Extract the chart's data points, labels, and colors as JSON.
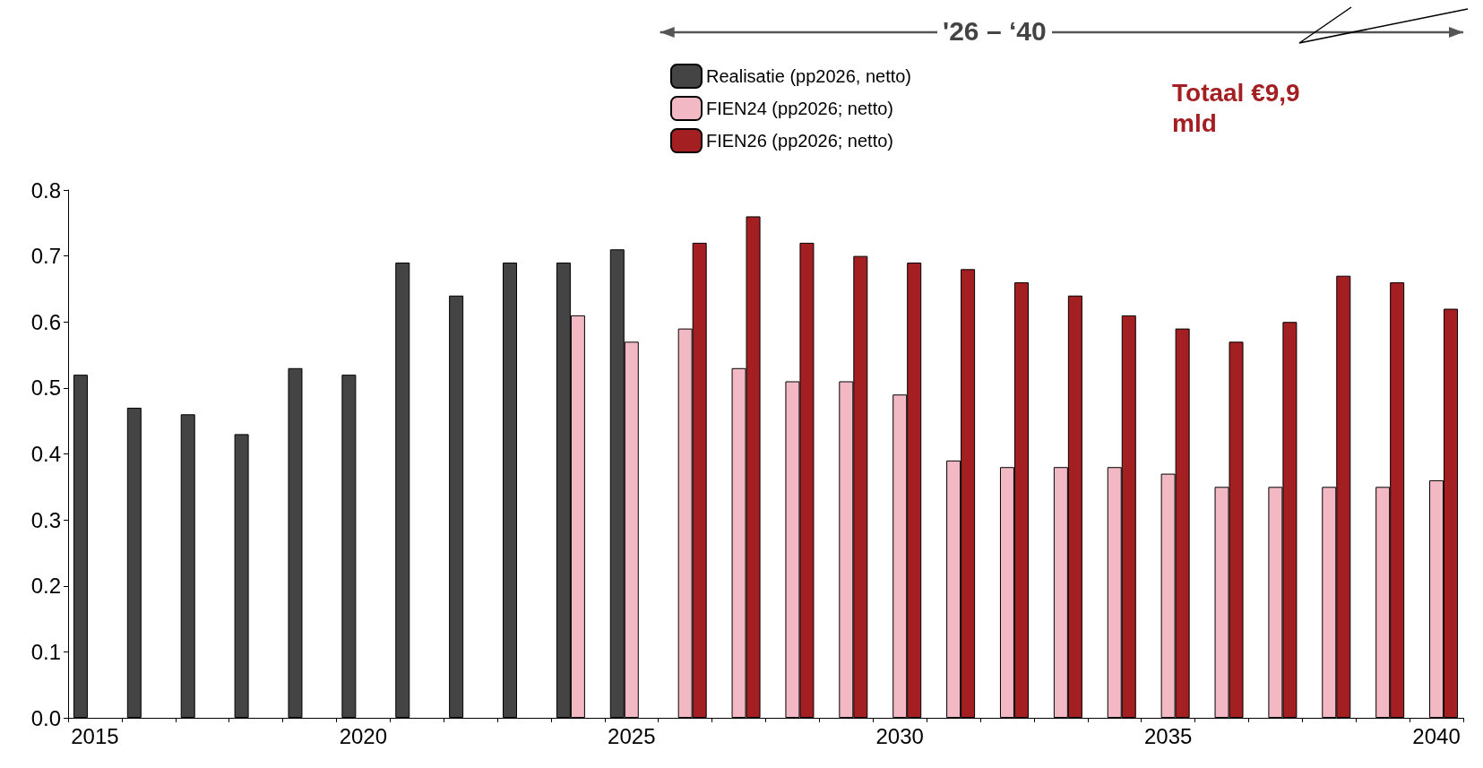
{
  "chart_data": {
    "type": "bar",
    "categories": [
      "2015",
      null,
      null,
      null,
      null,
      "2020",
      null,
      null,
      null,
      null,
      "2025",
      null,
      null,
      null,
      null,
      "2030",
      null,
      null,
      null,
      null,
      "2035",
      null,
      null,
      null,
      null,
      "2040"
    ],
    "series": [
      {
        "name": "Realisatie (pp2026, netto)",
        "color": "#444444",
        "values": [
          0.52,
          0.47,
          0.46,
          0.43,
          0.53,
          0.52,
          0.69,
          0.64,
          0.69,
          0.69,
          0.71,
          null,
          null,
          null,
          null,
          null,
          null,
          null,
          null,
          null,
          null,
          null,
          null,
          null,
          null,
          null
        ]
      },
      {
        "name": "FIEN24 (pp2026; netto)",
        "color": "#f2b8c3",
        "values": [
          null,
          null,
          null,
          null,
          null,
          null,
          null,
          null,
          null,
          0.61,
          0.57,
          0.59,
          0.53,
          0.51,
          0.51,
          0.49,
          0.39,
          0.38,
          0.38,
          0.38,
          0.37,
          0.35,
          0.35,
          0.35,
          0.35,
          0.36
        ]
      },
      {
        "name": "FIEN26 (pp2026; netto)",
        "color": "#a31f22",
        "values": [
          null,
          null,
          null,
          null,
          null,
          null,
          null,
          null,
          null,
          null,
          null,
          0.72,
          0.76,
          0.72,
          0.7,
          0.69,
          0.68,
          0.66,
          0.64,
          0.61,
          0.59,
          0.57,
          0.6,
          0.67,
          0.66,
          0.62
        ]
      }
    ],
    "ylim": [
      0,
      0.8
    ],
    "yticks": [
      {
        "value": 0,
        "label": "0.0"
      },
      {
        "value": 0.1,
        "label": "0.1"
      },
      {
        "value": 0.2,
        "label": "0.2"
      },
      {
        "value": 0.3,
        "label": "0.3"
      },
      {
        "value": 0.4,
        "label": "0.4"
      },
      {
        "value": 0.5,
        "label": "0.5"
      },
      {
        "value": 0.6,
        "label": "0.6"
      },
      {
        "value": 0.7,
        "label": "0.7"
      },
      {
        "value": 0.8,
        "label": "0.8"
      }
    ],
    "grid": false,
    "legend": "top",
    "annotations": [
      "'26 – ‘40",
      "Totaal €9,9 mld"
    ]
  }
}
